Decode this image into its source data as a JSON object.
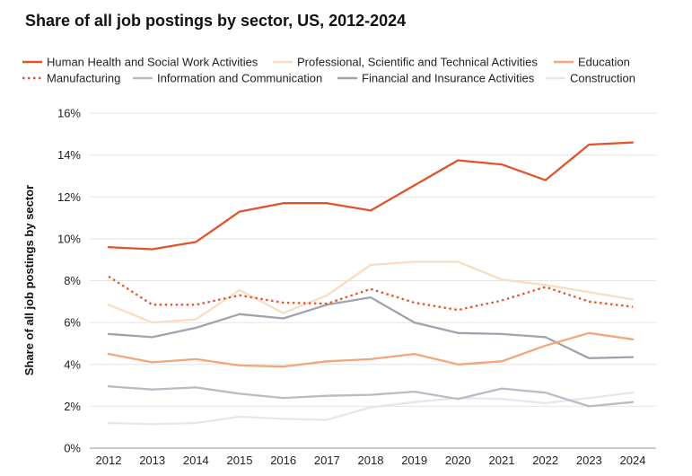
{
  "chart_data": {
    "type": "line",
    "title": "Share of all job postings by sector, US, 2012-2024",
    "xlabel": "",
    "ylabel": "Share of all job postings by sector",
    "ylim": [
      0,
      16
    ],
    "yticks": [
      "0%",
      "2%",
      "4%",
      "6%",
      "8%",
      "10%",
      "12%",
      "14%",
      "16%"
    ],
    "x": [
      "2012",
      "2013",
      "2014",
      "2015",
      "2016",
      "2017",
      "2018",
      "2019",
      "2020",
      "2021",
      "2022",
      "2023",
      "2024"
    ],
    "grid": true,
    "legend_position": "top",
    "series": [
      {
        "name": "Human Health and Social Work Activities",
        "color": "#e0542b",
        "dash": "solid",
        "values": [
          9.6,
          9.5,
          9.85,
          11.3,
          11.7,
          11.7,
          11.35,
          12.55,
          13.75,
          13.55,
          12.8,
          14.5,
          14.6
        ]
      },
      {
        "name": "Professional, Scientific and Technical Activities",
        "color": "#f9ddc3",
        "dash": "solid",
        "values": [
          6.85,
          6.0,
          6.15,
          7.55,
          6.45,
          7.3,
          8.75,
          8.9,
          8.9,
          8.05,
          7.8,
          7.45,
          7.1
        ]
      },
      {
        "name": "Education",
        "color": "#f2a679",
        "dash": "solid",
        "values": [
          4.5,
          4.1,
          4.25,
          3.95,
          3.9,
          4.15,
          4.25,
          4.5,
          4.0,
          4.15,
          4.9,
          5.5,
          5.2
        ]
      },
      {
        "name": "Manufacturing",
        "color": "#e0542b",
        "dash": "dotted",
        "values": [
          8.2,
          6.85,
          6.85,
          7.3,
          6.95,
          6.9,
          7.6,
          6.95,
          6.6,
          7.05,
          7.7,
          7.0,
          6.75
        ]
      },
      {
        "name": "Information and Communication",
        "color": "#b8bcc5",
        "dash": "solid",
        "values": [
          2.95,
          2.8,
          2.9,
          2.6,
          2.4,
          2.5,
          2.55,
          2.7,
          2.35,
          2.85,
          2.65,
          2.0,
          2.2
        ]
      },
      {
        "name": "Financial and Insurance Activities",
        "color": "#9ea3ad",
        "dash": "solid",
        "values": [
          5.45,
          5.3,
          5.75,
          6.4,
          6.2,
          6.85,
          7.2,
          6.0,
          5.5,
          5.45,
          5.3,
          4.3,
          4.35
        ]
      },
      {
        "name": "Construction",
        "color": "#e6e7ea",
        "dash": "solid",
        "values": [
          1.2,
          1.15,
          1.2,
          1.5,
          1.4,
          1.35,
          1.95,
          2.2,
          2.4,
          2.35,
          2.15,
          2.4,
          2.65
        ]
      }
    ]
  }
}
